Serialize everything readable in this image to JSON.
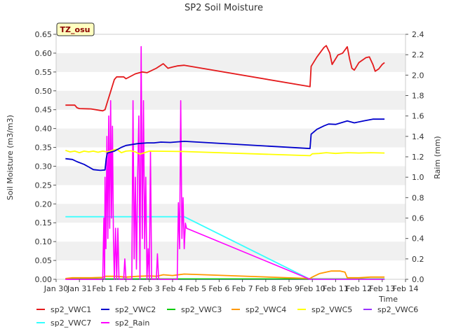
{
  "chart_data": {
    "type": "line",
    "title": "SP2 Soil Moisture",
    "site_badge": "TZ_osu",
    "xlabel": "Time",
    "ylabel": "Soil Moisture (m3/m3)",
    "y2label": "Raim (mm)",
    "x_ticks": [
      "Jan 30",
      "Jan 31",
      "Feb 1",
      "Feb 2",
      "Feb 3",
      "Feb 4",
      "Feb 5",
      "Feb 6",
      "Feb 7",
      "Feb 8",
      "Feb 9",
      "Feb 10",
      "Feb 11",
      "Feb 12",
      "Feb 13",
      "Feb 14"
    ],
    "y_ticks": [
      "0.00",
      "0.05",
      "0.10",
      "0.15",
      "0.20",
      "0.25",
      "0.30",
      "0.35",
      "0.40",
      "0.45",
      "0.50",
      "0.55",
      "0.60",
      "0.65"
    ],
    "y2_ticks": [
      "0.0",
      "0.2",
      "0.4",
      "0.6",
      "0.8",
      "1.0",
      "1.2",
      "1.4",
      "1.6",
      "1.8",
      "2.0",
      "2.2",
      "2.4"
    ],
    "xlim_days": [
      0,
      15
    ],
    "ylim": [
      0,
      0.65
    ],
    "y2lim": [
      0,
      2.4
    ],
    "grid_bands": true,
    "legend_placement": "bottom",
    "series": [
      {
        "name": "sp2_VWC1",
        "color": "#e41a1c",
        "axis": "left",
        "points": [
          [
            0.4,
            0.462
          ],
          [
            0.8,
            0.462
          ],
          [
            0.9,
            0.455
          ],
          [
            1.0,
            0.453
          ],
          [
            1.5,
            0.452
          ],
          [
            1.9,
            0.448
          ],
          [
            2.0,
            0.447
          ],
          [
            2.1,
            0.45
          ],
          [
            2.2,
            0.47
          ],
          [
            2.35,
            0.5
          ],
          [
            2.5,
            0.53
          ],
          [
            2.6,
            0.537
          ],
          [
            2.9,
            0.537
          ],
          [
            3.0,
            0.532
          ],
          [
            3.4,
            0.545
          ],
          [
            3.7,
            0.55
          ],
          [
            3.9,
            0.548
          ],
          [
            4.3,
            0.56
          ],
          [
            4.6,
            0.572
          ],
          [
            4.8,
            0.56
          ],
          [
            5.0,
            0.563
          ],
          [
            5.2,
            0.566
          ],
          [
            5.5,
            0.568
          ],
          [
            10.9,
            0.511
          ],
          [
            10.95,
            0.565
          ],
          [
            11.2,
            0.59
          ],
          [
            11.5,
            0.615
          ],
          [
            11.6,
            0.62
          ],
          [
            11.75,
            0.6
          ],
          [
            11.85,
            0.57
          ],
          [
            12.1,
            0.595
          ],
          [
            12.3,
            0.6
          ],
          [
            12.5,
            0.617
          ],
          [
            12.6,
            0.585
          ],
          [
            12.7,
            0.56
          ],
          [
            12.8,
            0.555
          ],
          [
            12.9,
            0.565
          ],
          [
            13.0,
            0.575
          ],
          [
            13.3,
            0.588
          ],
          [
            13.45,
            0.59
          ],
          [
            13.6,
            0.57
          ],
          [
            13.7,
            0.552
          ],
          [
            13.85,
            0.558
          ],
          [
            14.0,
            0.57
          ],
          [
            14.1,
            0.575
          ]
        ]
      },
      {
        "name": "sp2_VWC2",
        "color": "#0000cc",
        "axis": "left",
        "points": [
          [
            0.4,
            0.32
          ],
          [
            0.7,
            0.318
          ],
          [
            0.9,
            0.312
          ],
          [
            1.2,
            0.305
          ],
          [
            1.4,
            0.298
          ],
          [
            1.6,
            0.291
          ],
          [
            1.9,
            0.289
          ],
          [
            2.1,
            0.29
          ],
          [
            2.15,
            0.32
          ],
          [
            2.2,
            0.335
          ],
          [
            2.5,
            0.34
          ],
          [
            2.8,
            0.35
          ],
          [
            3.0,
            0.355
          ],
          [
            3.5,
            0.36
          ],
          [
            3.9,
            0.362
          ],
          [
            4.2,
            0.362
          ],
          [
            4.5,
            0.364
          ],
          [
            4.9,
            0.363
          ],
          [
            5.5,
            0.366
          ],
          [
            10.9,
            0.347
          ],
          [
            10.95,
            0.385
          ],
          [
            11.2,
            0.398
          ],
          [
            11.5,
            0.407
          ],
          [
            11.7,
            0.412
          ],
          [
            12.0,
            0.411
          ],
          [
            12.5,
            0.42
          ],
          [
            12.8,
            0.415
          ],
          [
            13.2,
            0.42
          ],
          [
            13.6,
            0.425
          ],
          [
            14.1,
            0.425
          ]
        ]
      },
      {
        "name": "sp2_VWC3",
        "color": "#00cc00",
        "axis": "left",
        "points": [
          [
            0.4,
            0.001
          ],
          [
            14.1,
            0.001
          ]
        ]
      },
      {
        "name": "sp2_VWC4",
        "color": "#ff9900",
        "axis": "left",
        "points": [
          [
            0.4,
            0.002
          ],
          [
            0.7,
            0.004
          ],
          [
            1.5,
            0.004
          ],
          [
            2.0,
            0.005
          ],
          [
            2.1,
            0.008
          ],
          [
            2.6,
            0.008
          ],
          [
            3.0,
            0.006
          ],
          [
            3.5,
            0.008
          ],
          [
            4.0,
            0.009
          ],
          [
            4.3,
            0.008
          ],
          [
            4.6,
            0.012
          ],
          [
            5.0,
            0.01
          ],
          [
            5.5,
            0.014
          ],
          [
            10.9,
            0.002
          ],
          [
            11.0,
            0.006
          ],
          [
            11.3,
            0.015
          ],
          [
            11.8,
            0.022
          ],
          [
            12.2,
            0.022
          ],
          [
            12.4,
            0.019
          ],
          [
            12.5,
            0.004
          ],
          [
            13.0,
            0.004
          ],
          [
            13.5,
            0.006
          ],
          [
            14.1,
            0.006
          ]
        ]
      },
      {
        "name": "sp2_VWC5",
        "color": "#ffff00",
        "axis": "left",
        "points": [
          [
            0.4,
            0.342
          ],
          [
            0.6,
            0.338
          ],
          [
            0.8,
            0.34
          ],
          [
            1.0,
            0.336
          ],
          [
            1.2,
            0.34
          ],
          [
            1.4,
            0.338
          ],
          [
            1.6,
            0.34
          ],
          [
            1.8,
            0.337
          ],
          [
            2.0,
            0.34
          ],
          [
            2.2,
            0.338
          ],
          [
            2.4,
            0.342
          ],
          [
            2.6,
            0.345
          ],
          [
            2.8,
            0.336
          ],
          [
            3.0,
            0.34
          ],
          [
            3.2,
            0.341
          ],
          [
            3.4,
            0.338
          ],
          [
            3.6,
            0.332
          ],
          [
            3.8,
            0.336
          ],
          [
            4.0,
            0.34
          ],
          [
            5.5,
            0.339
          ],
          [
            10.9,
            0.328
          ],
          [
            11.0,
            0.333
          ],
          [
            11.3,
            0.334
          ],
          [
            11.6,
            0.336
          ],
          [
            12.0,
            0.334
          ],
          [
            12.5,
            0.336
          ],
          [
            13.0,
            0.335
          ],
          [
            13.5,
            0.336
          ],
          [
            14.1,
            0.335
          ]
        ]
      },
      {
        "name": "sp2_VWC6",
        "color": "#9933ff",
        "axis": "left",
        "points": [
          [
            0.4,
            0.0
          ],
          [
            14.1,
            0.0
          ]
        ]
      },
      {
        "name": "sp2_VWC7",
        "color": "#33ffff",
        "axis": "left",
        "points": [
          [
            0.4,
            0.166
          ],
          [
            5.5,
            0.166
          ],
          [
            10.9,
            0.0
          ],
          [
            14.1,
            0.0
          ]
        ]
      },
      {
        "name": "sp2_Rain",
        "color": "#ff00ff",
        "axis": "right",
        "points": [
          [
            0.4,
            0.0
          ],
          [
            2.0,
            0.0
          ],
          [
            2.05,
            0.6
          ],
          [
            2.08,
            0.0
          ],
          [
            2.1,
            1.0
          ],
          [
            2.14,
            0.3
          ],
          [
            2.18,
            1.4
          ],
          [
            2.22,
            0.4
          ],
          [
            2.26,
            1.6
          ],
          [
            2.3,
            0.5
          ],
          [
            2.34,
            1.75
          ],
          [
            2.38,
            0.6
          ],
          [
            2.42,
            1.5
          ],
          [
            2.46,
            0.4
          ],
          [
            2.5,
            0.0
          ],
          [
            2.55,
            0.5
          ],
          [
            2.6,
            0.0
          ],
          [
            2.65,
            0.5
          ],
          [
            2.7,
            0.0
          ],
          [
            2.9,
            0.0
          ],
          [
            2.95,
            0.2
          ],
          [
            3.0,
            0.0
          ],
          [
            3.25,
            0.0
          ],
          [
            3.3,
            1.75
          ],
          [
            3.35,
            0.2
          ],
          [
            3.4,
            1.0
          ],
          [
            3.45,
            0.1
          ],
          [
            3.5,
            1.0
          ],
          [
            3.55,
            1.6
          ],
          [
            3.6,
            0.0
          ],
          [
            3.65,
            2.28
          ],
          [
            3.7,
            0.4
          ],
          [
            3.75,
            1.75
          ],
          [
            3.8,
            0.3
          ],
          [
            3.85,
            1.0
          ],
          [
            3.9,
            0.0
          ],
          [
            3.95,
            0.3
          ],
          [
            4.0,
            0.0
          ],
          [
            4.05,
            1.25
          ],
          [
            4.1,
            0.0
          ],
          [
            4.3,
            0.0
          ],
          [
            4.35,
            0.25
          ],
          [
            4.4,
            0.0
          ],
          [
            5.2,
            0.0
          ],
          [
            5.25,
            0.75
          ],
          [
            5.3,
            0.3
          ],
          [
            5.35,
            1.75
          ],
          [
            5.4,
            0.4
          ],
          [
            5.45,
            0.8
          ],
          [
            5.5,
            0.3
          ],
          [
            5.55,
            0.55
          ],
          [
            5.6,
            0.5
          ],
          [
            10.9,
            0.0
          ],
          [
            14.1,
            0.0
          ]
        ]
      }
    ]
  }
}
